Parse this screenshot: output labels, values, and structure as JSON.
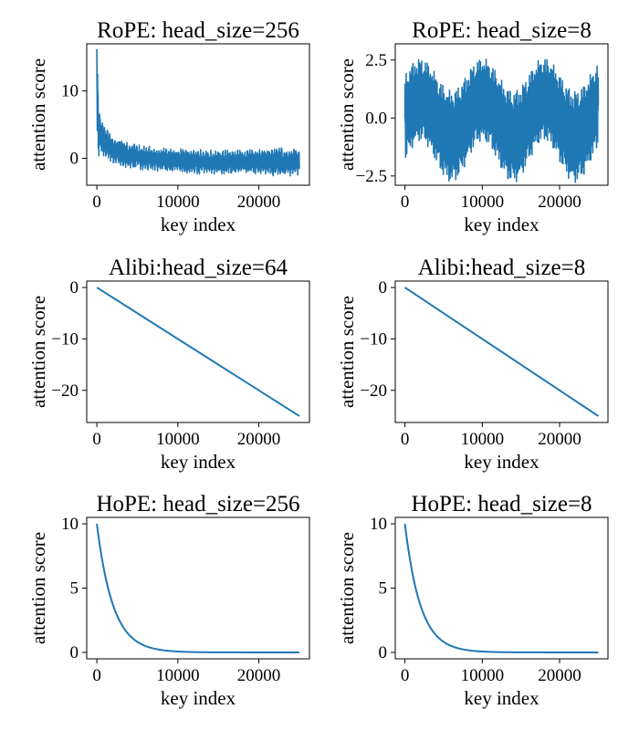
{
  "chart_data": [
    {
      "type": "line",
      "title": "RoPE: head_size=256",
      "xlabel": "key index",
      "ylabel": "attention score",
      "xlim": [
        -1250,
        26250
      ],
      "ylim": [
        -4,
        17
      ],
      "xticks": [
        0,
        10000,
        20000
      ],
      "yticks": [
        0,
        10
      ],
      "color": "#1f77b4",
      "curve": "rope_long_decay",
      "series": [
        {
          "x": [
            0,
            25000
          ],
          "y": [
            16.2,
            0.5
          ],
          "envelope": {
            "x": [
              0,
              250,
              500,
              1000,
              2000,
              3000,
              5000,
              8000,
              12000,
              15000,
              18000,
              22000,
              25000
            ],
            "upper": [
              16.2,
              8.0,
              6.3,
              4.9,
              3.4,
              2.7,
              2.0,
              1.5,
              1.3,
              1.2,
              1.2,
              1.5,
              1.5
            ],
            "lower": [
              -0.5,
              0.3,
              0.6,
              0.0,
              -0.8,
              -1.2,
              -1.6,
              -2.0,
              -2.3,
              -2.3,
              -2.2,
              -2.6,
              -2.6
            ]
          }
        }
      ]
    },
    {
      "type": "line",
      "title": "RoPE: head_size=8",
      "xlabel": "key index",
      "ylabel": "attention score",
      "xlim": [
        -1250,
        26250
      ],
      "ylim": [
        -2.9,
        3.2
      ],
      "xticks": [
        0,
        10000,
        20000
      ],
      "yticks": [
        -2.5,
        0.0,
        2.5
      ],
      "color": "#1f77b4",
      "curve": "rope_short_oscillation",
      "series": [
        {
          "x": [
            0,
            25000
          ],
          "y": [
            0.0,
            0.0
          ],
          "envelope": {
            "period": 8000,
            "upper_range": [
              1.2,
              2.6
            ],
            "lower_range": [
              -2.8,
              -1.0
            ]
          }
        }
      ]
    },
    {
      "type": "line",
      "title": "Alibi:head_size=64",
      "xlabel": "key index",
      "ylabel": "attention score",
      "xlim": [
        -1250,
        26250
      ],
      "ylim": [
        -26.25,
        1.25
      ],
      "xticks": [
        0,
        10000,
        20000
      ],
      "yticks": [
        0,
        -10,
        -20
      ],
      "color": "#1f77b4",
      "curve": "linear",
      "series": [
        {
          "x": [
            0,
            25000
          ],
          "y": [
            0,
            -25
          ]
        }
      ]
    },
    {
      "type": "line",
      "title": "Alibi:head_size=8",
      "xlabel": "key index",
      "ylabel": "attention score",
      "xlim": [
        -1250,
        26250
      ],
      "ylim": [
        -26.25,
        1.25
      ],
      "xticks": [
        0,
        10000,
        20000
      ],
      "yticks": [
        0,
        -10,
        -20
      ],
      "color": "#1f77b4",
      "curve": "linear",
      "series": [
        {
          "x": [
            0,
            25000
          ],
          "y": [
            0,
            -25
          ]
        }
      ]
    },
    {
      "type": "line",
      "title": "HoPE: head_size=256",
      "xlabel": "key index",
      "ylabel": "attention score",
      "xlim": [
        -1250,
        26250
      ],
      "ylim": [
        -0.5,
        10.5
      ],
      "xticks": [
        0,
        10000,
        20000
      ],
      "yticks": [
        0,
        5,
        10
      ],
      "color": "#1f77b4",
      "curve": "exponential_decay",
      "series": [
        {
          "x": [
            0,
            25000
          ],
          "y": [
            10,
            0
          ],
          "decay_constant": 2000
        }
      ]
    },
    {
      "type": "line",
      "title": "HoPE: head_size=8",
      "xlabel": "key index",
      "ylabel": "attention score",
      "xlim": [
        -1250,
        26250
      ],
      "ylim": [
        -0.5,
        10.5
      ],
      "xticks": [
        0,
        10000,
        20000
      ],
      "yticks": [
        0,
        5,
        10
      ],
      "color": "#1f77b4",
      "curve": "exponential_decay",
      "series": [
        {
          "x": [
            0,
            25000
          ],
          "y": [
            10,
            0
          ],
          "decay_constant": 2000
        }
      ]
    }
  ]
}
